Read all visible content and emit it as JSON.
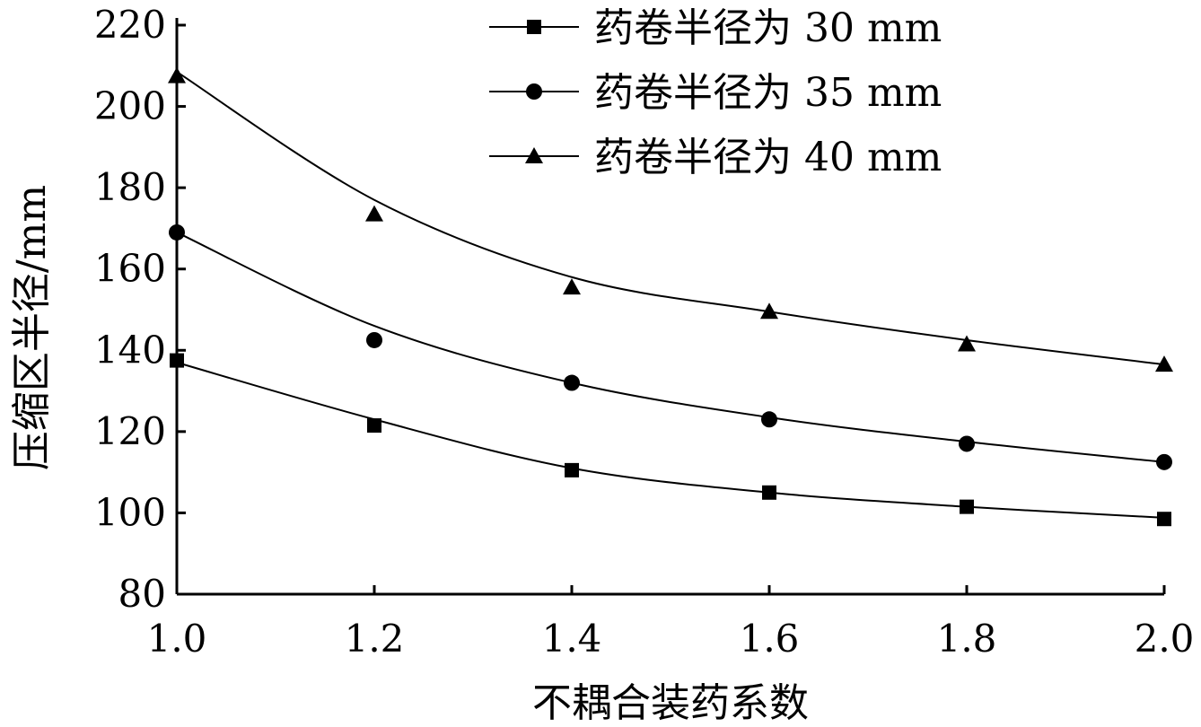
{
  "chart_data": {
    "type": "scatter",
    "title": "",
    "xlabel": "不耦合装药系数",
    "ylabel": "压缩区半径/mm",
    "xlim": [
      1.0,
      2.0
    ],
    "ylim": [
      80,
      220
    ],
    "xticks": [
      "1.0",
      "1.2",
      "1.4",
      "1.6",
      "1.8",
      "2.0"
    ],
    "yticks": [
      "80",
      "100",
      "120",
      "140",
      "160",
      "180",
      "200",
      "220"
    ],
    "x": [
      1.0,
      1.2,
      1.4,
      1.6,
      1.8,
      2.0
    ],
    "legend_position": "top-right",
    "grid": false,
    "series": [
      {
        "name": "药卷半径为 30 mm",
        "marker": "square",
        "values": [
          137.5,
          121.5,
          110.5,
          105.0,
          101.5,
          98.5
        ],
        "fit": [
          137.0,
          123.0,
          111.0,
          105.0,
          101.5,
          98.8
        ]
      },
      {
        "name": "药卷半径为 35 mm",
        "marker": "circle",
        "values": [
          169.0,
          142.5,
          132.0,
          123.0,
          117.0,
          112.5
        ],
        "fit": [
          169.0,
          146.0,
          132.0,
          123.5,
          117.5,
          112.5
        ]
      },
      {
        "name": "药卷半径为 40 mm",
        "marker": "triangle",
        "values": [
          207.5,
          173.5,
          155.5,
          149.5,
          141.5,
          136.5
        ],
        "fit": [
          208.5,
          177.0,
          158.0,
          149.5,
          142.5,
          136.5
        ]
      }
    ]
  }
}
